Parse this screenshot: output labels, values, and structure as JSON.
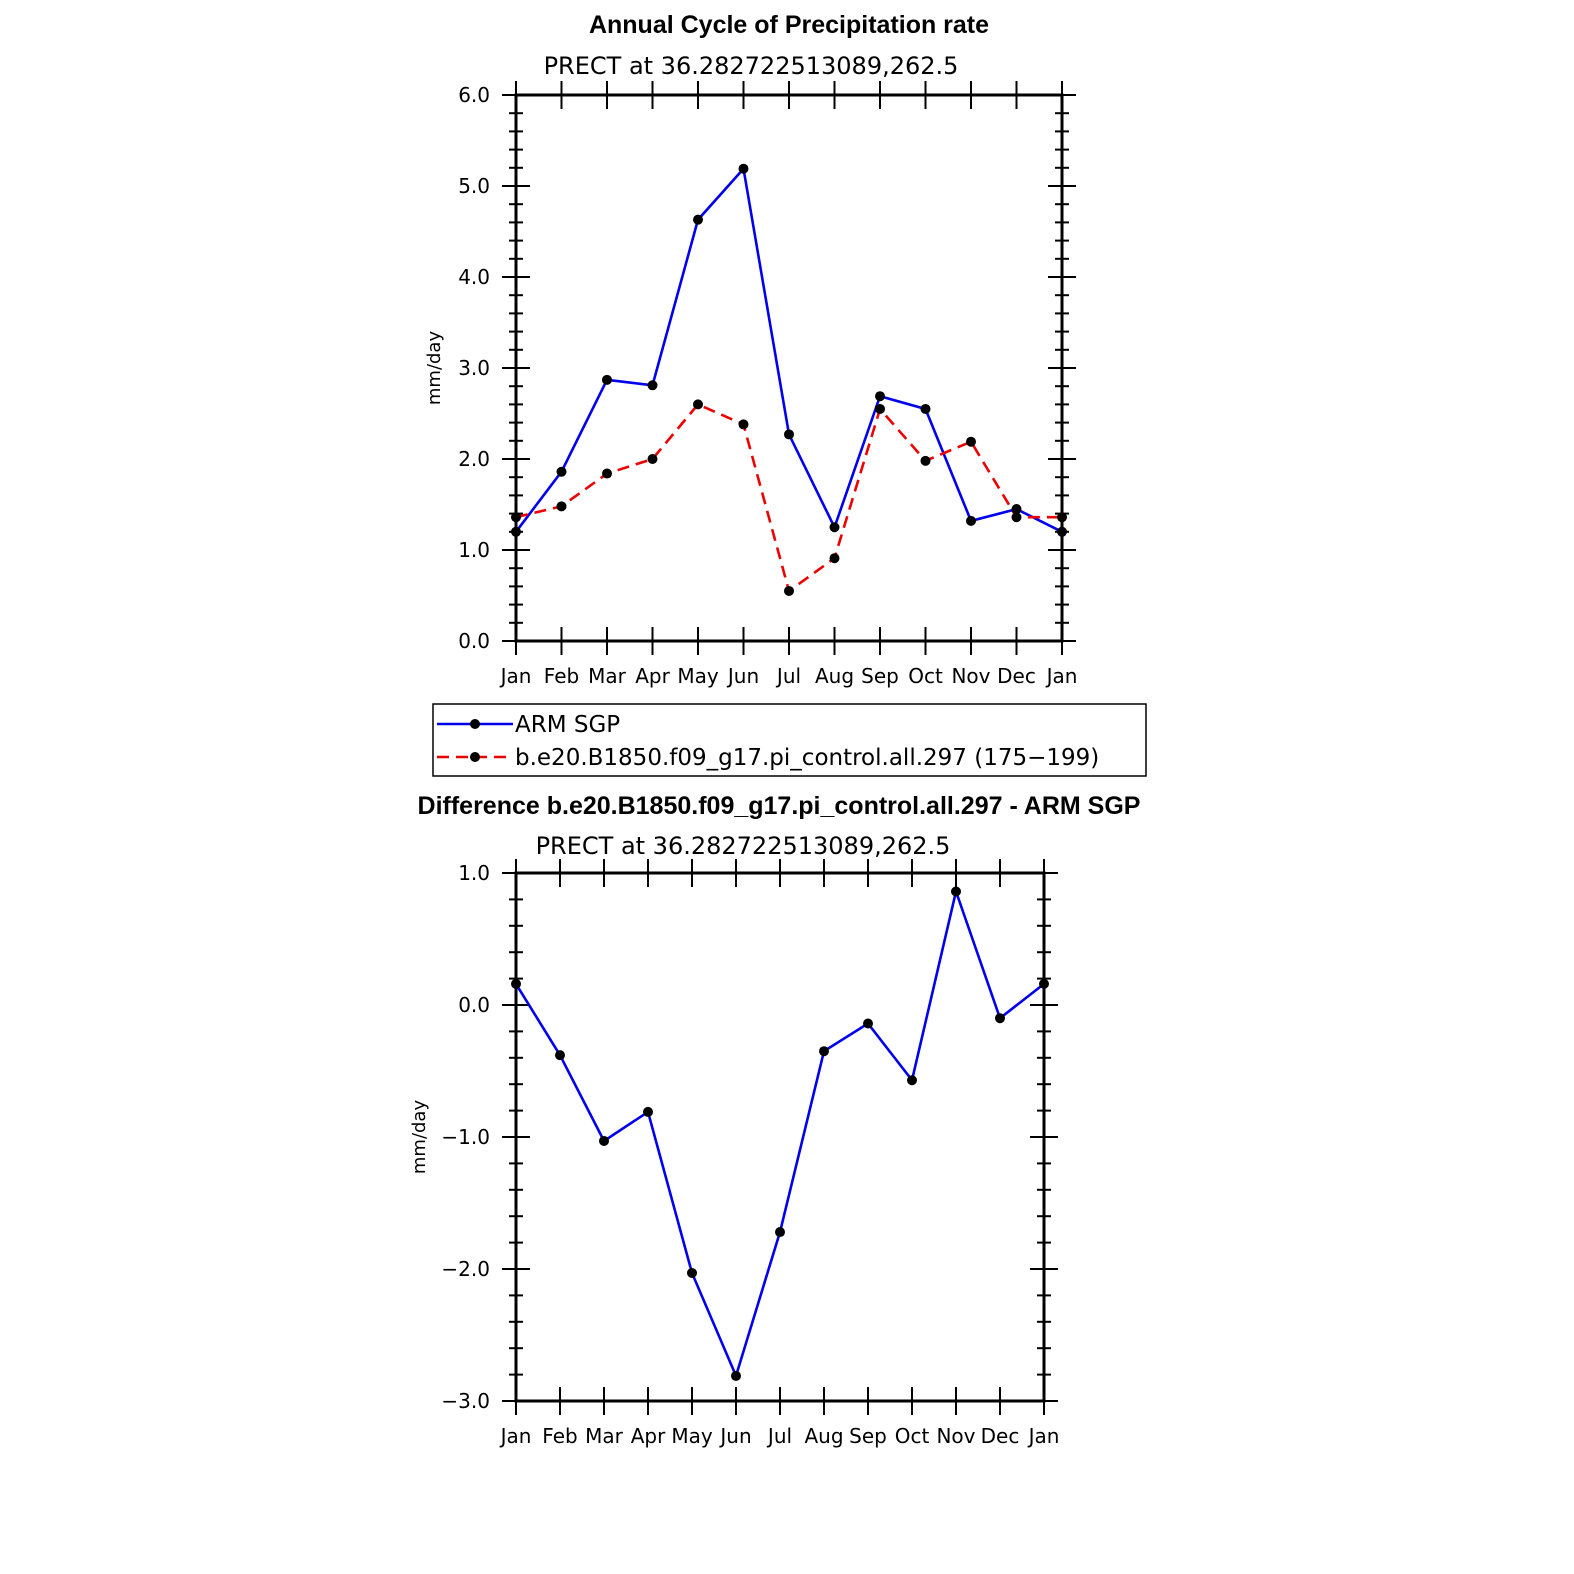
{
  "chart_data": [
    {
      "type": "line",
      "title": "Annual Cycle of Precipitation rate",
      "subtitle": "PRECT at 36.282722513089,262.5",
      "ylabel": "mm/day",
      "xlabel": "",
      "ylim": [
        0,
        6
      ],
      "yticks": [
        "0.0",
        "1.0",
        "2.0",
        "3.0",
        "4.0",
        "5.0",
        "6.0"
      ],
      "categories": [
        "Jan",
        "Feb",
        "Mar",
        "Apr",
        "May",
        "Jun",
        "Jul",
        "Aug",
        "Sep",
        "Oct",
        "Nov",
        "Dec",
        "Jan"
      ],
      "grid": false,
      "legend": "below",
      "series": [
        {
          "name": "ARM SGP",
          "color": "#0000ee",
          "dash": "solid",
          "values": [
            1.2,
            1.86,
            2.87,
            2.81,
            4.63,
            5.19,
            2.27,
            1.25,
            2.69,
            2.55,
            1.32,
            1.45,
            1.2
          ]
        },
        {
          "name": "b.e20.B1850.f09_g17.pi_control.all.297 (175−199)",
          "color": "#ee0000",
          "dash": "dashed",
          "values": [
            1.36,
            1.48,
            1.84,
            2.0,
            2.6,
            2.38,
            0.55,
            0.91,
            2.55,
            1.98,
            2.19,
            1.36,
            1.36
          ]
        }
      ]
    },
    {
      "type": "line",
      "title": "Difference b.e20.B1850.f09_g17.pi_control.all.297 - ARM SGP",
      "subtitle": "PRECT at 36.282722513089,262.5",
      "ylabel": "mm/day",
      "xlabel": "",
      "ylim": [
        -3,
        1
      ],
      "yticks": [
        "−3.0",
        "−2.0",
        "−1.0",
        "0.0",
        "1.0"
      ],
      "categories": [
        "Jan",
        "Feb",
        "Mar",
        "Apr",
        "May",
        "Jun",
        "Jul",
        "Aug",
        "Sep",
        "Oct",
        "Nov",
        "Dec",
        "Jan"
      ],
      "grid": false,
      "series": [
        {
          "color": "#0000ee",
          "dash": "solid",
          "values": [
            0.16,
            -0.38,
            -1.03,
            -0.81,
            -2.03,
            -2.81,
            -1.72,
            -0.35,
            -0.14,
            -0.57,
            0.86,
            -0.1,
            0.16
          ]
        }
      ]
    }
  ]
}
